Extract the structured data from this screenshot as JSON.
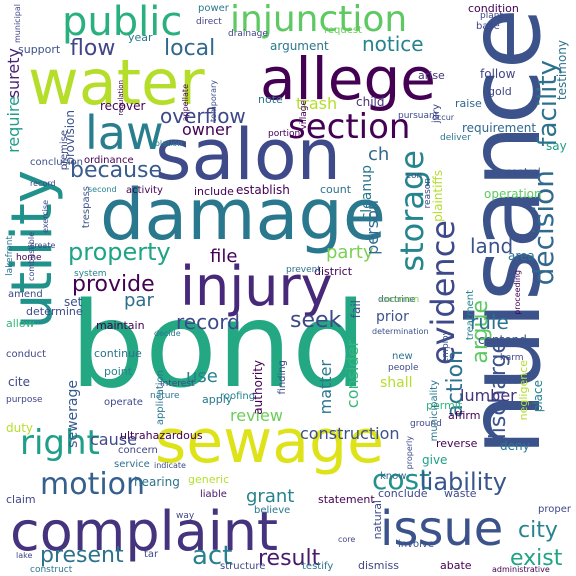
{
  "words": [
    {
      "text": "bond",
      "color": "#23a883"
    },
    {
      "text": "nuisance",
      "color": "#3b528b"
    },
    {
      "text": "damage",
      "color": "#2a788e"
    },
    {
      "text": "salon",
      "color": "#3e4a89"
    },
    {
      "text": "complaint",
      "color": "#45337d"
    },
    {
      "text": "water",
      "color": "#b5de2b"
    },
    {
      "text": "sewage",
      "color": "#dde318"
    },
    {
      "text": "allege",
      "color": "#440154"
    },
    {
      "text": "injury",
      "color": "#482878"
    },
    {
      "text": "utility",
      "color": "#21918c"
    },
    {
      "text": "issue",
      "color": "#3b528b"
    },
    {
      "text": "law",
      "color": "#287d8e"
    },
    {
      "text": "public",
      "color": "#2ab07f"
    },
    {
      "text": "injunction",
      "color": "#5ec962"
    },
    {
      "text": "section",
      "color": "#440154"
    },
    {
      "text": "storage",
      "color": "#25858e"
    },
    {
      "text": "evidence",
      "color": "#3e4989"
    },
    {
      "text": "decision",
      "color": "#31688e"
    },
    {
      "text": "facility",
      "color": "#2c728e"
    },
    {
      "text": "right",
      "color": "#1f9e89"
    },
    {
      "text": "motion",
      "color": "#355f8d"
    },
    {
      "text": "because",
      "color": "#375b8d"
    },
    {
      "text": "provide",
      "color": "#440154"
    },
    {
      "text": "property",
      "color": "#20a486"
    },
    {
      "text": "cost",
      "color": "#20928c"
    },
    {
      "text": "liability",
      "color": "#39568c"
    },
    {
      "text": "present",
      "color": "#2c728e"
    },
    {
      "text": "act",
      "color": "#26828e"
    },
    {
      "text": "result",
      "color": "#481a6c"
    },
    {
      "text": "city",
      "color": "#25848e"
    },
    {
      "text": "exist",
      "color": "#20a486"
    },
    {
      "text": "argue",
      "color": "#5ec962"
    },
    {
      "text": "discharge",
      "color": "#3b528b"
    },
    {
      "text": "action",
      "color": "#2c728e"
    },
    {
      "text": "overflow",
      "color": "#3e4989"
    },
    {
      "text": "flow",
      "color": "#404688"
    },
    {
      "text": "local",
      "color": "#31688e"
    },
    {
      "text": "notice",
      "color": "#26828e"
    },
    {
      "text": "surety",
      "color": "#482374"
    },
    {
      "text": "require",
      "color": "#1f9e89"
    },
    {
      "text": "record",
      "color": "#3e4989"
    },
    {
      "text": "seek",
      "color": "#3e4989"
    },
    {
      "text": "party",
      "color": "#7ad151"
    },
    {
      "text": "file",
      "color": "#440154"
    },
    {
      "text": "par",
      "color": "#2f6c8e"
    },
    {
      "text": "rule",
      "color": "#2c728e"
    },
    {
      "text": "lumber",
      "color": "#46327e"
    },
    {
      "text": "consider",
      "color": "#35b779"
    },
    {
      "text": "person",
      "color": "#2f6c8e"
    },
    {
      "text": "cleanup",
      "color": "#2a788e"
    },
    {
      "text": "land",
      "color": "#3b528b"
    },
    {
      "text": "use",
      "color": "#26828e"
    },
    {
      "text": "grant",
      "color": "#26828e"
    },
    {
      "text": "review",
      "color": "#6ccd5a"
    },
    {
      "text": "construction",
      "color": "#3b528b"
    },
    {
      "text": "cause",
      "color": "#3e4a89"
    },
    {
      "text": "matter",
      "color": "#2a788e"
    },
    {
      "text": "sewerage",
      "color": "#375b8d"
    },
    {
      "text": "trash",
      "color": "#b5de2b"
    },
    {
      "text": "owner",
      "color": "#440154"
    },
    {
      "text": "ch",
      "color": "#31688e"
    },
    {
      "text": "follow",
      "color": "#404688"
    },
    {
      "text": "gold",
      "color": "#404688"
    },
    {
      "text": "condition",
      "color": "#440154"
    },
    {
      "text": "base",
      "color": "#3e4a89"
    },
    {
      "text": "power",
      "color": "#2a788e"
    },
    {
      "text": "request",
      "color": "#6ccd5a"
    },
    {
      "text": "argument",
      "color": "#2a788e"
    },
    {
      "text": "year",
      "color": "#2a788e"
    },
    {
      "text": "support",
      "color": "#3b528b"
    },
    {
      "text": "recover",
      "color": "#440154"
    },
    {
      "text": "note",
      "color": "#2c728e"
    },
    {
      "text": "child",
      "color": "#46337e"
    },
    {
      "text": "raise",
      "color": "#31688e"
    },
    {
      "text": "arise",
      "color": "#46337e"
    },
    {
      "text": "requirement",
      "color": "#31688e"
    },
    {
      "text": "say",
      "color": "#1f9e89"
    },
    {
      "text": "control",
      "color": "#3b528b"
    },
    {
      "text": "testimony",
      "color": "#2c728e"
    },
    {
      "text": "operation",
      "color": "#5ec962"
    },
    {
      "text": "area",
      "color": "#2c728e"
    },
    {
      "text": "establish",
      "color": "#440154"
    },
    {
      "text": "count",
      "color": "#2c728e"
    },
    {
      "text": "include",
      "color": "#440154"
    },
    {
      "text": "activity",
      "color": "#440154"
    },
    {
      "text": "second",
      "color": "#26828e"
    },
    {
      "text": "trespass",
      "color": "#3b528b"
    },
    {
      "text": "determine",
      "color": "#3e4989"
    },
    {
      "text": "amend",
      "color": "#3e4989"
    },
    {
      "text": "maintain",
      "color": "#440154"
    },
    {
      "text": "continue",
      "color": "#2c728e"
    },
    {
      "text": "set",
      "color": "#3b528b"
    },
    {
      "text": "allow",
      "color": "#35b779"
    },
    {
      "text": "conduct",
      "color": "#404688"
    },
    {
      "text": "cite",
      "color": "#404688"
    },
    {
      "text": "purpose",
      "color": "#404688"
    },
    {
      "text": "duty",
      "color": "#b5de2b"
    },
    {
      "text": "claim",
      "color": "#404688"
    },
    {
      "text": "roofing",
      "color": "#26828e"
    },
    {
      "text": "apply",
      "color": "#2a788e"
    },
    {
      "text": "authority",
      "color": "#440154"
    },
    {
      "text": "application",
      "color": "#2a788e"
    },
    {
      "text": "point",
      "color": "#26828e"
    },
    {
      "text": "operate",
      "color": "#3e4989"
    },
    {
      "text": "ultrahazardous",
      "color": "#440154"
    },
    {
      "text": "concern",
      "color": "#404688"
    },
    {
      "text": "service",
      "color": "#2c728e"
    },
    {
      "text": "hearing",
      "color": "#2c728e"
    },
    {
      "text": "generic",
      "color": "#b5de2b"
    },
    {
      "text": "liable",
      "color": "#481467"
    },
    {
      "text": "believe",
      "color": "#2a788e"
    },
    {
      "text": "statement",
      "color": "#440154"
    },
    {
      "text": "natural",
      "color": "#3e4989"
    },
    {
      "text": "involve",
      "color": "#3b528b"
    },
    {
      "text": "conclude",
      "color": "#3e4989"
    },
    {
      "text": "waste",
      "color": "#3e4989"
    },
    {
      "text": "know",
      "color": "#31688e"
    },
    {
      "text": "give",
      "color": "#1f9e89"
    },
    {
      "text": "deny",
      "color": "#2a788e"
    },
    {
      "text": "reverse",
      "color": "#440154"
    },
    {
      "text": "affirm",
      "color": "#440154"
    },
    {
      "text": "ground",
      "color": "#404688"
    },
    {
      "text": "permit",
      "color": "#35b779"
    },
    {
      "text": "place",
      "color": "#26828e"
    },
    {
      "text": "prior",
      "color": "#3b528b"
    },
    {
      "text": "contend",
      "color": "#3b528b"
    },
    {
      "text": "shall",
      "color": "#b5de2b"
    },
    {
      "text": "new",
      "color": "#2c728e"
    },
    {
      "text": "people",
      "color": "#3e4989"
    },
    {
      "text": "fail",
      "color": "#3b528b"
    },
    {
      "text": "abate",
      "color": "#440154"
    },
    {
      "text": "dismiss",
      "color": "#404688"
    },
    {
      "text": "testify",
      "color": "#2c728e"
    },
    {
      "text": "structure",
      "color": "#404688"
    },
    {
      "text": "construct",
      "color": "#2a788e"
    },
    {
      "text": "tar",
      "color": "#3e4989"
    },
    {
      "text": "proper",
      "color": "#3e4989"
    },
    {
      "text": "district",
      "color": "#440154"
    },
    {
      "text": "prevent",
      "color": "#2c728e"
    },
    {
      "text": "treatment",
      "color": "#26828e"
    },
    {
      "text": "negligence",
      "color": "#b5de2b"
    },
    {
      "text": "municipality",
      "color": "#2a788e"
    },
    {
      "text": "plaintiffs",
      "color": "#b5de2b"
    },
    {
      "text": "drainage",
      "color": "#404688"
    },
    {
      "text": "direct",
      "color": "#404688"
    },
    {
      "text": "plant",
      "color": "#404688"
    },
    {
      "text": "lakefront",
      "color": "#2a788e"
    },
    {
      "text": "combustible",
      "color": "#3e4989"
    },
    {
      "text": "provision",
      "color": "#3b528b"
    },
    {
      "text": "conclusion",
      "color": "#3b528b"
    },
    {
      "text": "ordinance",
      "color": "#440154"
    },
    {
      "text": "jury",
      "color": "#404688"
    },
    {
      "text": "harm",
      "color": "#3e4989"
    },
    {
      "text": "pursuant",
      "color": "#3e4989"
    },
    {
      "text": "deliver",
      "color": "#2a788e"
    },
    {
      "text": "reason",
      "color": "#3e4989"
    },
    {
      "text": "village",
      "color": "#440154"
    },
    {
      "text": "portion",
      "color": "#440154"
    },
    {
      "text": "doctrine",
      "color": "#3b528b"
    },
    {
      "text": "determination",
      "color": "#3b528b"
    },
    {
      "text": "common",
      "color": "#7ad151"
    },
    {
      "text": "interest",
      "color": "#3e4989"
    },
    {
      "text": "nature",
      "color": "#2a788e"
    },
    {
      "text": "finding",
      "color": "#3e4989"
    },
    {
      "text": "system",
      "color": "#26828e"
    },
    {
      "text": "home",
      "color": "#440154"
    },
    {
      "text": "create",
      "color": "#3e4989"
    },
    {
      "text": "decide",
      "color": "#2a788e"
    },
    {
      "text": "premise",
      "color": "#3e4989"
    },
    {
      "text": "con",
      "color": "#3e4989"
    },
    {
      "text": "temporary",
      "color": "#3e4989"
    },
    {
      "text": "appellate",
      "color": "#440154"
    },
    {
      "text": "violation",
      "color": "#26828e"
    },
    {
      "text": "municipal",
      "color": "#404688"
    },
    {
      "text": "proceeding",
      "color": "#440154"
    },
    {
      "text": "administrative",
      "color": "#440154"
    },
    {
      "text": "employ",
      "color": "#3b528b"
    },
    {
      "text": "way",
      "color": "#404688"
    },
    {
      "text": "indicate",
      "color": "#3e4989"
    },
    {
      "text": "lake",
      "color": "#404688"
    },
    {
      "text": "regulation",
      "color": "#440154"
    },
    {
      "text": "record",
      "color": "#3e4989"
    },
    {
      "text": "exercise",
      "color": "#3e4989"
    },
    {
      "text": "occur",
      "color": "#404688"
    },
    {
      "text": "properly",
      "color": "#3e4989"
    },
    {
      "text": "core",
      "color": "#3e4989"
    }
  ]
}
